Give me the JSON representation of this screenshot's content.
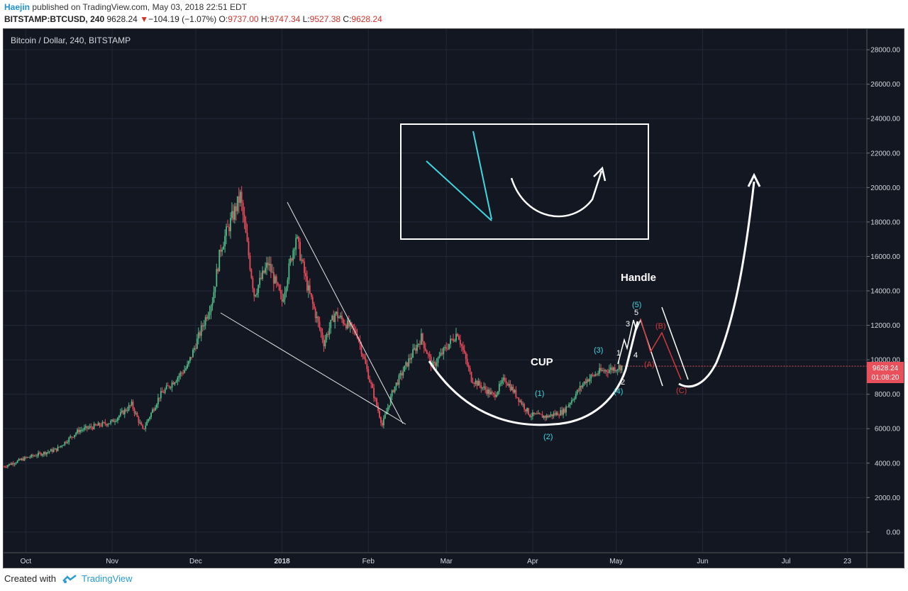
{
  "header": {
    "author": "Haejin",
    "published_text": " published on TradingView.com, May 03, 2018 22:51 EDT",
    "symbol": "BITSTAMP:BTCUSD, 240",
    "last": "9628.24",
    "change_arrow": "▼",
    "change": "−104.19 (−1.07%)",
    "o_label": "O:",
    "o_value": "9737.00",
    "h_label": "H:",
    "h_value": "9747.34",
    "l_label": "L:",
    "l_value": "9527.38",
    "c_label": "C:",
    "c_value": "9628.24"
  },
  "chart": {
    "title": "Bitcoin / Dollar, 240, BITSTAMP",
    "price_badge": "9628.24",
    "time_badge": "01:08:20"
  },
  "footer": {
    "created_with": "Created with",
    "brand": "TradingView"
  },
  "chart_data": {
    "type": "line",
    "title": "Bitcoin / Dollar, 240, BITSTAMP",
    "y_ticks": [
      "28000.00",
      "26000.00",
      "24000.00",
      "22000.00",
      "20000.00",
      "18000.00",
      "16000.00",
      "14000.00",
      "12000.00",
      "10000.00",
      "8000.00",
      "6000.00",
      "4000.00",
      "2000.00",
      "0.00"
    ],
    "x_ticks": [
      "Oct",
      "Nov",
      "Dec",
      "2018",
      "Feb",
      "Mar",
      "Apr",
      "May",
      "Jun",
      "Jul",
      "23"
    ],
    "ylim": [
      -1200,
      29200
    ],
    "series": [
      {
        "x": [
          "2017-09-23",
          "2017-10-01",
          "2017-10-12",
          "2017-10-20",
          "2017-11-01",
          "2017-11-08",
          "2017-11-12",
          "2017-11-18",
          "2017-11-28",
          "2017-12-07",
          "2017-12-10",
          "2017-12-17",
          "2017-12-22",
          "2017-12-27",
          "2018-01-01",
          "2018-01-06",
          "2018-01-10",
          "2018-01-16",
          "2018-01-20",
          "2018-01-28",
          "2018-02-02",
          "2018-02-06",
          "2018-02-10",
          "2018-02-20",
          "2018-02-24",
          "2018-03-05",
          "2018-03-10",
          "2018-03-18",
          "2018-03-22",
          "2018-03-31",
          "2018-04-06",
          "2018-04-12",
          "2018-04-20",
          "2018-04-25",
          "2018-05-03"
        ],
        "values": [
          3800,
          4300,
          4800,
          5900,
          6400,
          7400,
          5900,
          7900,
          9600,
          13500,
          16500,
          19500,
          13800,
          15600,
          13400,
          17200,
          14300,
          11000,
          12700,
          11500,
          8500,
          6200,
          8300,
          11300,
          9600,
          11600,
          8900,
          7900,
          8900,
          6800,
          6700,
          7000,
          8800,
          9300,
          9628
        ]
      }
    ],
    "annotations": [
      "CUP",
      "Handle",
      "(1)",
      "(2)",
      "(3)",
      "(4)",
      "(5)",
      "1",
      "2",
      "3",
      "4",
      "5",
      "(A)",
      "(B)",
      "(C)"
    ]
  }
}
